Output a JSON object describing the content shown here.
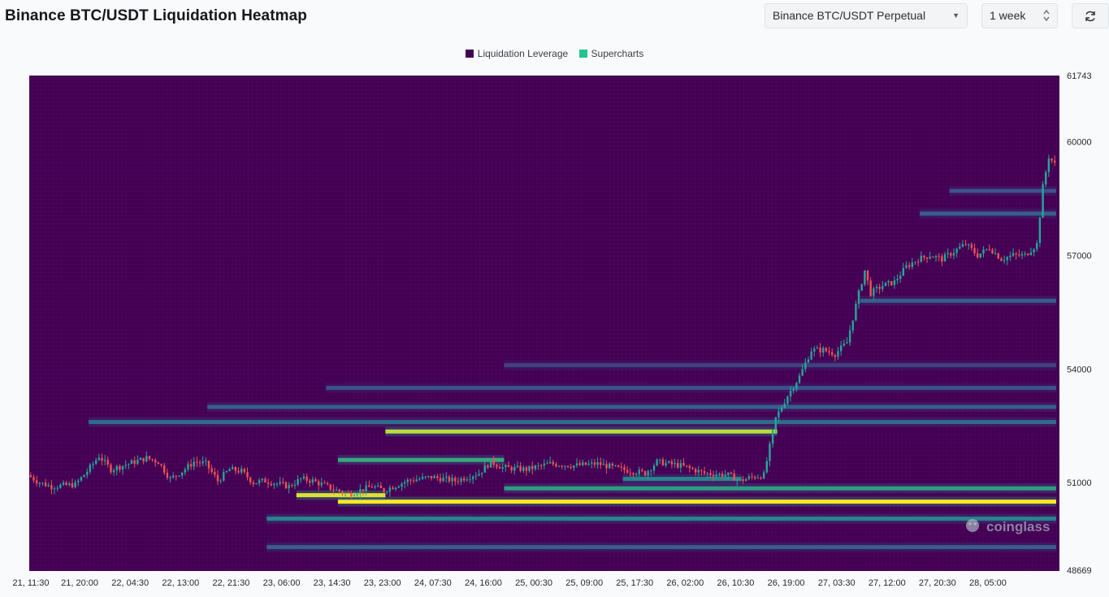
{
  "header": {
    "title": "Binance BTC/USDT Liquidation Heatmap",
    "pair_select": "Binance BTC/USDT Perpetual",
    "period_select": "1 week",
    "refresh_icon": "refresh-icon"
  },
  "colors": {
    "background": "#440154",
    "liquidation_leverage": "#440154",
    "supercharts": "#22c58b",
    "candle_up": "#26a69a",
    "candle_down": "#ef5350",
    "heat_high": "#fde725"
  },
  "watermark": "coinglass",
  "chart_data": {
    "type": "heatmap",
    "title": "Binance BTC/USDT Liquidation Heatmap",
    "legend": [
      "Liquidation Leverage",
      "Supercharts"
    ],
    "legend_position": "top-center",
    "ylim": [
      48669,
      61743
    ],
    "y_ticks": [
      61743,
      60000,
      57000,
      54000,
      51000,
      48669
    ],
    "x_ticks": [
      "21, 11:30",
      "21, 20:00",
      "22, 04:30",
      "22, 13:00",
      "22, 21:30",
      "23, 06:00",
      "23, 14:30",
      "23, 23:00",
      "24, 07:30",
      "24, 16:00",
      "25, 00:30",
      "25, 09:00",
      "25, 17:30",
      "26, 02:00",
      "26, 10:30",
      "26, 19:00",
      "27, 03:30",
      "27, 12:00",
      "27, 20:30",
      "28, 05:00"
    ],
    "x_start_hours": 0,
    "x_end_hours": 163,
    "x_tick_interval_hours": 8.5,
    "price_path": [
      [
        0,
        51200
      ],
      [
        2,
        51000
      ],
      [
        4,
        50900
      ],
      [
        8,
        50950
      ],
      [
        10,
        51300
      ],
      [
        12,
        51700
      ],
      [
        14,
        51350
      ],
      [
        16,
        51450
      ],
      [
        18,
        51550
      ],
      [
        20,
        51650
      ],
      [
        22,
        51550
      ],
      [
        24,
        51100
      ],
      [
        26,
        51300
      ],
      [
        28,
        51550
      ],
      [
        30,
        51500
      ],
      [
        32,
        51050
      ],
      [
        34,
        51350
      ],
      [
        36,
        51300
      ],
      [
        38,
        51000
      ],
      [
        40,
        51050
      ],
      [
        44,
        50900
      ],
      [
        46,
        51100
      ],
      [
        48,
        51050
      ],
      [
        52,
        50800
      ],
      [
        54,
        50700
      ],
      [
        58,
        50900
      ],
      [
        60,
        50800
      ],
      [
        64,
        51050
      ],
      [
        68,
        51150
      ],
      [
        72,
        51050
      ],
      [
        76,
        51250
      ],
      [
        78,
        51550
      ],
      [
        80,
        51400
      ],
      [
        84,
        51350
      ],
      [
        88,
        51500
      ],
      [
        92,
        51450
      ],
      [
        96,
        51500
      ],
      [
        100,
        51350
      ],
      [
        104,
        51250
      ],
      [
        106,
        51550
      ],
      [
        110,
        51450
      ],
      [
        114,
        51250
      ],
      [
        118,
        51200
      ],
      [
        120,
        51050
      ],
      [
        122,
        51150
      ],
      [
        124,
        51200
      ],
      [
        126,
        52700
      ],
      [
        128,
        53300
      ],
      [
        130,
        53800
      ],
      [
        132,
        54500
      ],
      [
        134,
        54500
      ],
      [
        136,
        54400
      ],
      [
        138,
        54700
      ],
      [
        140,
        56000
      ],
      [
        141,
        56600
      ],
      [
        142,
        56000
      ],
      [
        144,
        56200
      ],
      [
        146,
        56300
      ],
      [
        148,
        56700
      ],
      [
        150,
        56900
      ],
      [
        152,
        57000
      ],
      [
        154,
        56900
      ],
      [
        156,
        57100
      ],
      [
        158,
        57300
      ],
      [
        160,
        57000
      ],
      [
        162,
        57200
      ],
      [
        164,
        56900
      ],
      [
        166,
        57000
      ],
      [
        168,
        57000
      ],
      [
        170,
        57300
      ],
      [
        171,
        58800
      ],
      [
        172,
        59600
      ],
      [
        173,
        59400
      ]
    ],
    "liquidation_levels": [
      {
        "price": 50500,
        "start": 52,
        "end": 173,
        "intensity": 1.0
      },
      {
        "price": 50670,
        "start": 45,
        "end": 60,
        "intensity": 0.95
      },
      {
        "price": 52350,
        "start": 60,
        "end": 126,
        "intensity": 0.9
      },
      {
        "price": 51600,
        "start": 52,
        "end": 80,
        "intensity": 0.6
      },
      {
        "price": 50850,
        "start": 80,
        "end": 173,
        "intensity": 0.55
      },
      {
        "price": 51100,
        "start": 100,
        "end": 120,
        "intensity": 0.45
      },
      {
        "price": 50050,
        "start": 40,
        "end": 173,
        "intensity": 0.45
      },
      {
        "price": 52600,
        "start": 10,
        "end": 173,
        "intensity": 0.35
      },
      {
        "price": 53000,
        "start": 30,
        "end": 173,
        "intensity": 0.3
      },
      {
        "price": 53500,
        "start": 50,
        "end": 173,
        "intensity": 0.25
      },
      {
        "price": 54100,
        "start": 80,
        "end": 173,
        "intensity": 0.2
      },
      {
        "price": 49300,
        "start": 40,
        "end": 173,
        "intensity": 0.3
      },
      {
        "price": 55800,
        "start": 140,
        "end": 173,
        "intensity": 0.3
      },
      {
        "price": 58100,
        "start": 150,
        "end": 173,
        "intensity": 0.3
      },
      {
        "price": 58700,
        "start": 155,
        "end": 173,
        "intensity": 0.25
      }
    ]
  }
}
